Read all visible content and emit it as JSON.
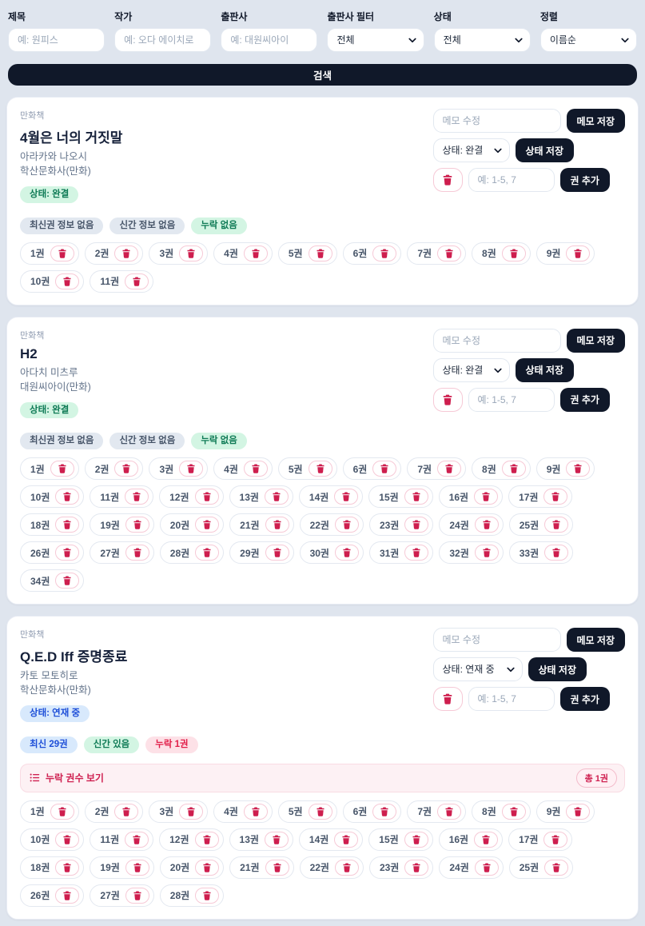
{
  "filters": {
    "items": [
      {
        "label": "제목",
        "placeholder": "예: 원피스"
      },
      {
        "label": "작가",
        "placeholder": "예: 오다 에이치로"
      },
      {
        "label": "출판사",
        "placeholder": "예: 대원씨아이"
      },
      {
        "label": "출판사 필터",
        "value": "전체"
      },
      {
        "label": "상태",
        "value": "전체"
      },
      {
        "label": "정렬",
        "value": "이름순"
      }
    ],
    "search_label": "검색"
  },
  "cards": [
    {
      "type_label": "만화책",
      "title": "4월은 너의 거짓말",
      "author": "아라카와 나오시",
      "publisher": "학산문화사(만화)",
      "status_badge": "상태: 완결",
      "memo_placeholder": "메모 수정",
      "memo_save_label": "메모 저장",
      "status_select_value": "상태: 완결",
      "status_save_label": "상태 저장",
      "volume_input_placeholder": "예: 1-5, 7",
      "add_volume_label": "권 추가",
      "info_badges": [
        {
          "text": "최신권 정보 없음"
        },
        {
          "text": "신간 정보 없음"
        },
        {
          "text": "누락 없음"
        }
      ],
      "volumes": [
        "1권",
        "2권",
        "3권",
        "4권",
        "5권",
        "6권",
        "7권",
        "8권",
        "9권",
        "10권",
        "11권"
      ]
    },
    {
      "type_label": "만화책",
      "title": "H2",
      "author": "아다치 미츠루",
      "publisher": "대원씨아이(만화)",
      "status_badge": "상태: 완결",
      "memo_placeholder": "메모 수정",
      "memo_save_label": "메모 저장",
      "status_select_value": "상태: 완결",
      "status_save_label": "상태 저장",
      "volume_input_placeholder": "예: 1-5, 7",
      "add_volume_label": "권 추가",
      "info_badges": [
        {
          "text": "최신권 정보 없음"
        },
        {
          "text": "신간 정보 없음"
        },
        {
          "text": "누락 없음"
        }
      ],
      "volumes": [
        "1권",
        "2권",
        "3권",
        "4권",
        "5권",
        "6권",
        "7권",
        "8권",
        "9권",
        "10권",
        "11권",
        "12권",
        "13권",
        "14권",
        "15권",
        "16권",
        "17권",
        "18권",
        "19권",
        "20권",
        "21권",
        "22권",
        "23권",
        "24권",
        "25권",
        "26권",
        "27권",
        "28권",
        "29권",
        "30권",
        "31권",
        "32권",
        "33권",
        "34권"
      ]
    },
    {
      "type_label": "만화책",
      "title": "Q.E.D Iff 증명종료",
      "author": "카토 모토히로",
      "publisher": "학산문화사(만화)",
      "status_badge": "상태: 연재 중",
      "memo_placeholder": "메모 수정",
      "memo_save_label": "메모 저장",
      "status_select_value": "상태: 연재 중",
      "status_save_label": "상태 저장",
      "volume_input_placeholder": "예: 1-5, 7",
      "add_volume_label": "권 추가",
      "info_badges": [
        {
          "text": "최신 29권"
        },
        {
          "text": "신간 있음"
        },
        {
          "text": "누락 1권"
        }
      ],
      "missing_bar": {
        "label": "누락 권수 보기",
        "total": "총 1권"
      },
      "volumes": [
        "1권",
        "2권",
        "3권",
        "4권",
        "5권",
        "6권",
        "7권",
        "8권",
        "9권",
        "10권",
        "11권",
        "12권",
        "13권",
        "14권",
        "15권",
        "16권",
        "17권",
        "18권",
        "19권",
        "20권",
        "21권",
        "22권",
        "23권",
        "24권",
        "25권",
        "26권",
        "27권",
        "28권"
      ]
    }
  ]
}
